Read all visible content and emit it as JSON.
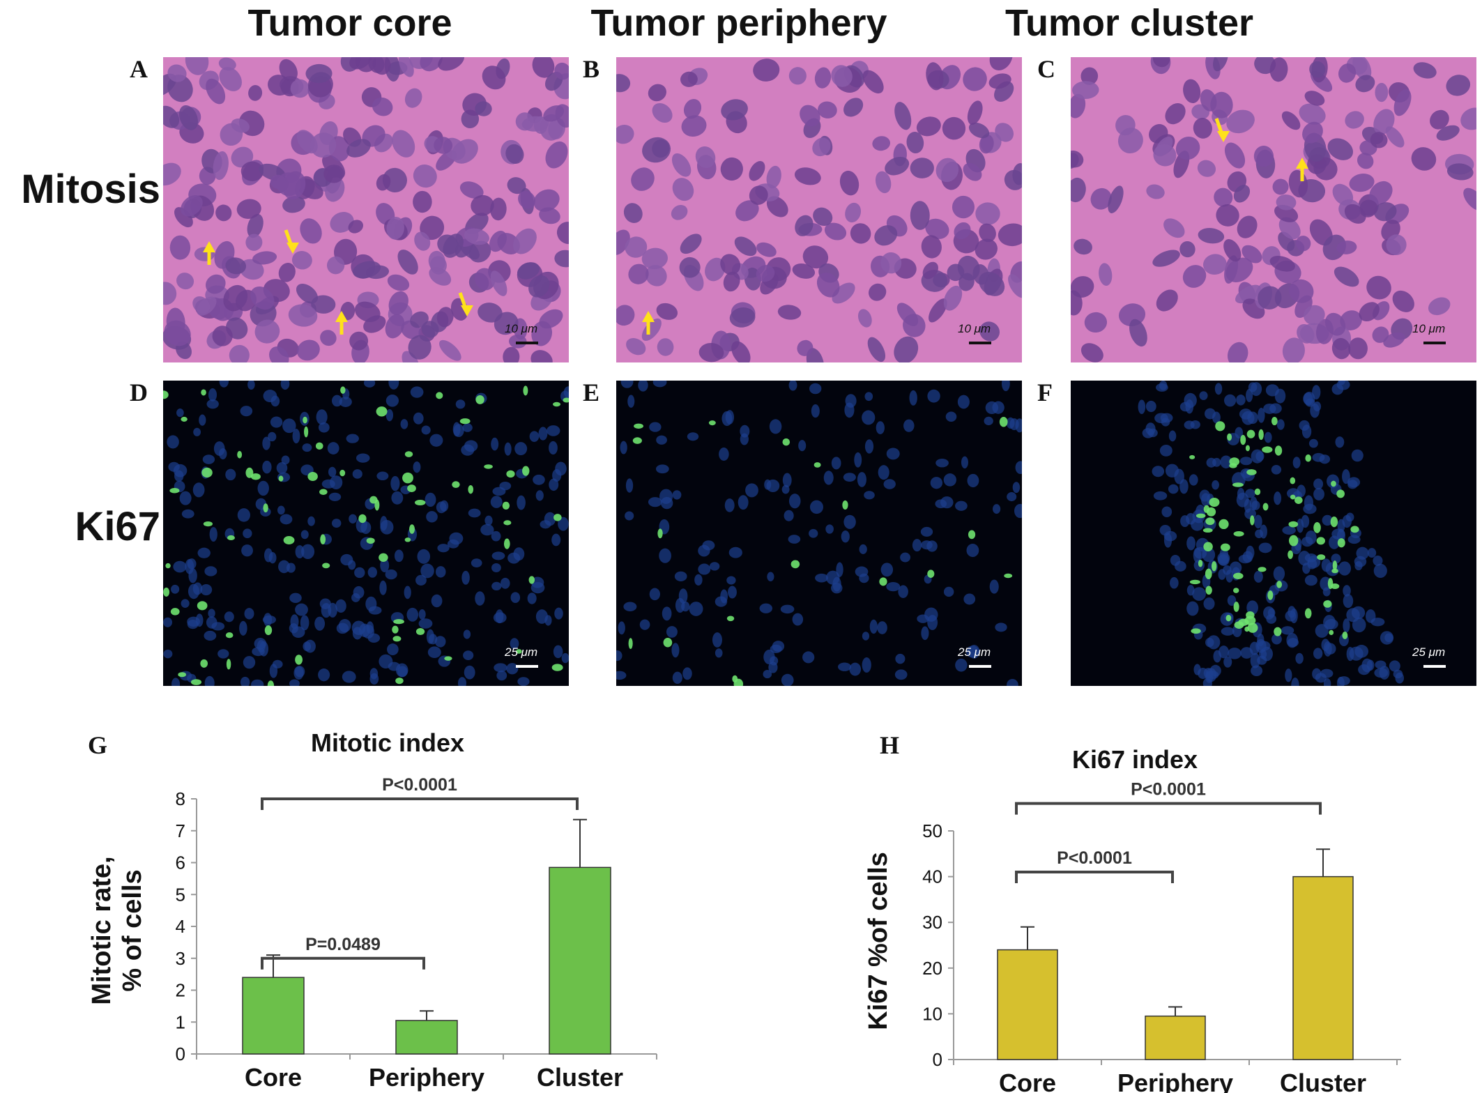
{
  "figure": {
    "columns": [
      "Tumor core",
      "Tumor periphery",
      "Tumor cluster"
    ],
    "rows": [
      "Mitosis",
      "Ki67"
    ],
    "panels": [
      {
        "letter": "A",
        "row": 0,
        "col": 0,
        "scale": "10 μm",
        "arrows": 4
      },
      {
        "letter": "B",
        "row": 0,
        "col": 1,
        "scale": "10 μm",
        "arrows": 1
      },
      {
        "letter": "C",
        "row": 0,
        "col": 2,
        "scale": "10 μm",
        "arrows": 2
      },
      {
        "letter": "D",
        "row": 1,
        "col": 0,
        "scale": "25 μm"
      },
      {
        "letter": "E",
        "row": 1,
        "col": 1,
        "scale": "25 μm"
      },
      {
        "letter": "F",
        "row": 1,
        "col": 2,
        "scale": "25 μm"
      }
    ],
    "colors": {
      "he_background": "#d27fc0",
      "nucleus": "#7a4a9a",
      "arrow": "#ffe11a",
      "fluor_background": "#02040d",
      "dapi": "#1c3f8f",
      "ki67": "#6fe36f"
    }
  },
  "chart_data": [
    {
      "letter": "G",
      "type": "bar",
      "title": "Mitotic index",
      "ylabel_lines": [
        "Mitotic rate,",
        "% of cells"
      ],
      "categories": [
        "Core",
        "Periphery",
        "Cluster"
      ],
      "values": [
        2.4,
        1.05,
        5.85
      ],
      "errors": [
        0.7,
        0.3,
        1.5
      ],
      "ylim": [
        0,
        8
      ],
      "yticks": [
        0,
        1,
        2,
        3,
        4,
        5,
        6,
        7,
        8
      ],
      "color": "#6cc04a",
      "comparisons": [
        {
          "from": 0,
          "to": 1,
          "label": "P=0.0489",
          "level": 3.0
        },
        {
          "from": 0,
          "to": 2,
          "label": "P<0.0001",
          "level": 8.0
        }
      ]
    },
    {
      "letter": "H",
      "type": "bar",
      "title": "Ki67 index",
      "ylabel_lines": [
        "Ki67 %of cells"
      ],
      "categories": [
        "Core",
        "Periphery",
        "Cluster"
      ],
      "values": [
        24,
        9.5,
        40
      ],
      "errors": [
        5,
        2,
        6
      ],
      "ylim": [
        0,
        50
      ],
      "yticks": [
        0,
        10,
        20,
        30,
        40,
        50
      ],
      "color": "#d6c02e",
      "comparisons": [
        {
          "from": 0,
          "to": 1,
          "label": "P<0.0001",
          "level": 41
        },
        {
          "from": 0,
          "to": 2,
          "label": "P<0.0001",
          "level": 56
        }
      ]
    }
  ]
}
